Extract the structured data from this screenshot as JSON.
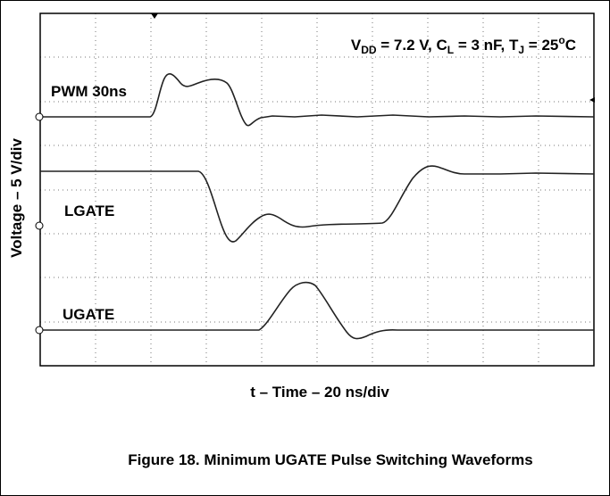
{
  "figure": {
    "annotation": [
      "V",
      "DD",
      " = 7.2 V, C",
      "L",
      " = 3 nF, T",
      "J",
      " = 25",
      "o",
      "C"
    ],
    "traces": [
      "PWM 30ns",
      "LGATE",
      "UGATE"
    ],
    "y_label": "Voltage – 5 V/div",
    "x_label": "t – Time – 20 ns/div",
    "caption": "Figure 18. Minimum UGATE Pulse Switching Waveforms"
  }
}
